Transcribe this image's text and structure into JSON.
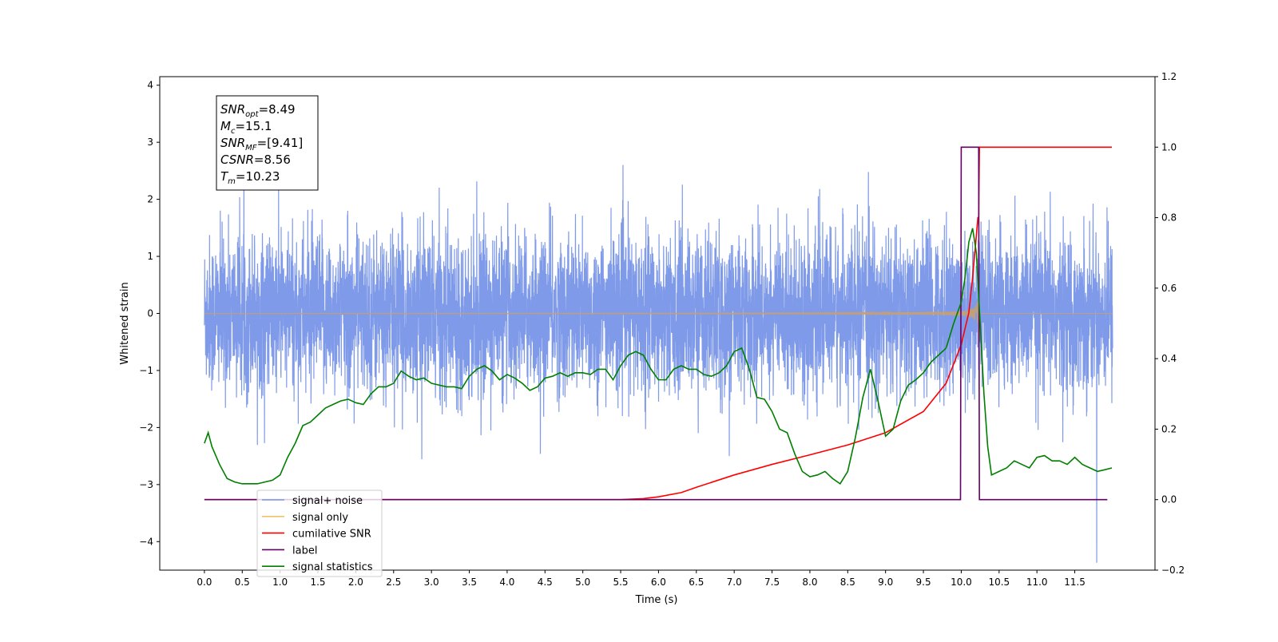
{
  "chart_data": {
    "type": "line",
    "xlabel": "Time (s)",
    "ylabel": "Whitened strain",
    "x_ticks": [
      0.0,
      0.5,
      1.0,
      1.5,
      2.0,
      2.5,
      3.0,
      3.5,
      4.0,
      4.5,
      5.0,
      5.5,
      6.0,
      6.5,
      7.0,
      7.5,
      8.0,
      8.5,
      9.0,
      9.5,
      10.0,
      10.5,
      11.0,
      11.5
    ],
    "x_tick_labels": [
      "0.0",
      "0.5",
      "1.0",
      "1.5",
      "2.0",
      "2.5",
      "3.0",
      "3.5",
      "4.0",
      "4.5",
      "5.0",
      "5.5",
      "6.0",
      "6.5",
      "7.0",
      "7.5",
      "8.0",
      "8.5",
      "9.0",
      "9.5",
      "10.0",
      "10.5",
      "11.0",
      "11.5"
    ],
    "xlim": [
      -0.59,
      12.56
    ],
    "ylim_left": [
      -4.5,
      4.15
    ],
    "left_ticks": [
      -4,
      -3,
      -2,
      -1,
      0,
      1,
      2,
      3,
      4
    ],
    "left_tick_labels": [
      "−4",
      "−3",
      "−2",
      "−1",
      "0",
      "1",
      "2",
      "3",
      "4"
    ],
    "ylim_right": [
      -0.2,
      1.2
    ],
    "right_ticks": [
      -0.2,
      0.0,
      0.2,
      0.4,
      0.6,
      0.8,
      1.0,
      1.2
    ],
    "right_tick_labels": [
      "−0.2",
      "0.0",
      "0.2",
      "0.4",
      "0.6",
      "0.8",
      "1.0",
      "1.2"
    ],
    "noise_sigma": 1.0,
    "annotation": {
      "lines": [
        {
          "base": "SNR",
          "sub": "opt",
          "rest": "=8.49"
        },
        {
          "base": "M",
          "sub": "c",
          "rest": "=15.1"
        },
        {
          "base": "SNR",
          "sub": "MF",
          "rest": "=[9.41]"
        },
        {
          "base": "CSNR",
          "sub": "",
          "rest": "=8.56"
        },
        {
          "base": "T",
          "sub": "m",
          "rest": "=10.23"
        }
      ]
    },
    "legend_position": "lower-left",
    "series": [
      {
        "name": "signal+ noise",
        "axis": "left",
        "color": "#7895e8",
        "note": "white noise, x from 0 to 12"
      },
      {
        "name": "signal only",
        "axis": "left",
        "color": "#f5c26b",
        "note": "chirp, amplitude grows until merger at 10.23"
      },
      {
        "name": "cumilative SNR",
        "axis": "right",
        "color": "#ff0000",
        "x": [
          0.0,
          5.5,
          5.8,
          6.0,
          6.3,
          6.5,
          7.0,
          7.5,
          8.0,
          8.5,
          9.0,
          9.5,
          9.8,
          10.0,
          10.1,
          10.15,
          10.2,
          10.22,
          10.23,
          10.24,
          11.99
        ],
        "values": [
          0.0,
          0.0,
          0.003,
          0.008,
          0.02,
          0.035,
          0.07,
          0.1,
          0.127,
          0.155,
          0.19,
          0.25,
          0.33,
          0.44,
          0.53,
          0.63,
          0.75,
          0.8,
          0.8,
          1.0,
          1.0
        ]
      },
      {
        "name": "label",
        "axis": "right",
        "color": "#660066",
        "x": [
          0.0,
          9.99,
          10.0,
          10.23,
          10.24,
          11.93
        ],
        "values": [
          0.0,
          0.0,
          1.0,
          1.0,
          0.0,
          0.0
        ]
      },
      {
        "name": "signal statistics",
        "axis": "right",
        "color": "#007f00",
        "x": [
          0.0,
          0.05,
          0.1,
          0.2,
          0.3,
          0.4,
          0.5,
          0.6,
          0.7,
          0.8,
          0.9,
          1.0,
          1.1,
          1.2,
          1.3,
          1.4,
          1.5,
          1.6,
          1.7,
          1.8,
          1.9,
          2.0,
          2.1,
          2.2,
          2.3,
          2.4,
          2.5,
          2.6,
          2.7,
          2.8,
          2.9,
          3.0,
          3.1,
          3.2,
          3.3,
          3.4,
          3.5,
          3.6,
          3.7,
          3.8,
          3.9,
          4.0,
          4.1,
          4.2,
          4.3,
          4.4,
          4.5,
          4.6,
          4.7,
          4.8,
          4.9,
          5.0,
          5.1,
          5.2,
          5.3,
          5.4,
          5.5,
          5.6,
          5.7,
          5.8,
          5.9,
          6.0,
          6.1,
          6.2,
          6.3,
          6.4,
          6.5,
          6.6,
          6.7,
          6.8,
          6.9,
          7.0,
          7.1,
          7.2,
          7.3,
          7.4,
          7.5,
          7.6,
          7.7,
          7.8,
          7.9,
          8.0,
          8.1,
          8.2,
          8.3,
          8.4,
          8.5,
          8.6,
          8.7,
          8.8,
          8.9,
          9.0,
          9.1,
          9.2,
          9.3,
          9.4,
          9.5,
          9.6,
          9.7,
          9.8,
          9.9,
          10.0,
          10.05,
          10.1,
          10.15,
          10.2,
          10.25,
          10.3,
          10.35,
          10.4,
          10.5,
          10.6,
          10.7,
          10.8,
          10.9,
          11.0,
          11.1,
          11.2,
          11.3,
          11.4,
          11.5,
          11.6,
          11.7,
          11.8,
          11.9,
          11.99
        ],
        "values": [
          0.16,
          0.19,
          0.15,
          0.1,
          0.06,
          0.05,
          0.045,
          0.045,
          0.045,
          0.05,
          0.055,
          0.07,
          0.12,
          0.16,
          0.21,
          0.22,
          0.24,
          0.26,
          0.27,
          0.28,
          0.285,
          0.275,
          0.27,
          0.3,
          0.32,
          0.32,
          0.33,
          0.365,
          0.35,
          0.34,
          0.345,
          0.33,
          0.325,
          0.32,
          0.32,
          0.315,
          0.35,
          0.37,
          0.38,
          0.365,
          0.34,
          0.355,
          0.345,
          0.33,
          0.31,
          0.32,
          0.345,
          0.35,
          0.36,
          0.35,
          0.36,
          0.36,
          0.355,
          0.37,
          0.37,
          0.34,
          0.38,
          0.41,
          0.42,
          0.41,
          0.37,
          0.34,
          0.34,
          0.37,
          0.38,
          0.37,
          0.37,
          0.355,
          0.35,
          0.36,
          0.38,
          0.42,
          0.43,
          0.37,
          0.29,
          0.285,
          0.25,
          0.2,
          0.19,
          0.13,
          0.08,
          0.065,
          0.07,
          0.08,
          0.06,
          0.045,
          0.08,
          0.175,
          0.29,
          0.37,
          0.28,
          0.18,
          0.2,
          0.28,
          0.325,
          0.34,
          0.36,
          0.39,
          0.41,
          0.43,
          0.5,
          0.56,
          0.63,
          0.73,
          0.77,
          0.7,
          0.5,
          0.3,
          0.15,
          0.07,
          0.08,
          0.09,
          0.11,
          0.1,
          0.09,
          0.12,
          0.125,
          0.11,
          0.11,
          0.1,
          0.12,
          0.1,
          0.09,
          0.08,
          0.085,
          0.09
        ]
      }
    ],
    "legend": [
      {
        "label": "signal+ noise",
        "color": "#7895e8"
      },
      {
        "label": "signal only",
        "color": "#f5c26b"
      },
      {
        "label": "cumilative SNR",
        "color": "#ff0000"
      },
      {
        "label": "label",
        "color": "#660066"
      },
      {
        "label": "signal statistics",
        "color": "#007f00"
      }
    ]
  }
}
